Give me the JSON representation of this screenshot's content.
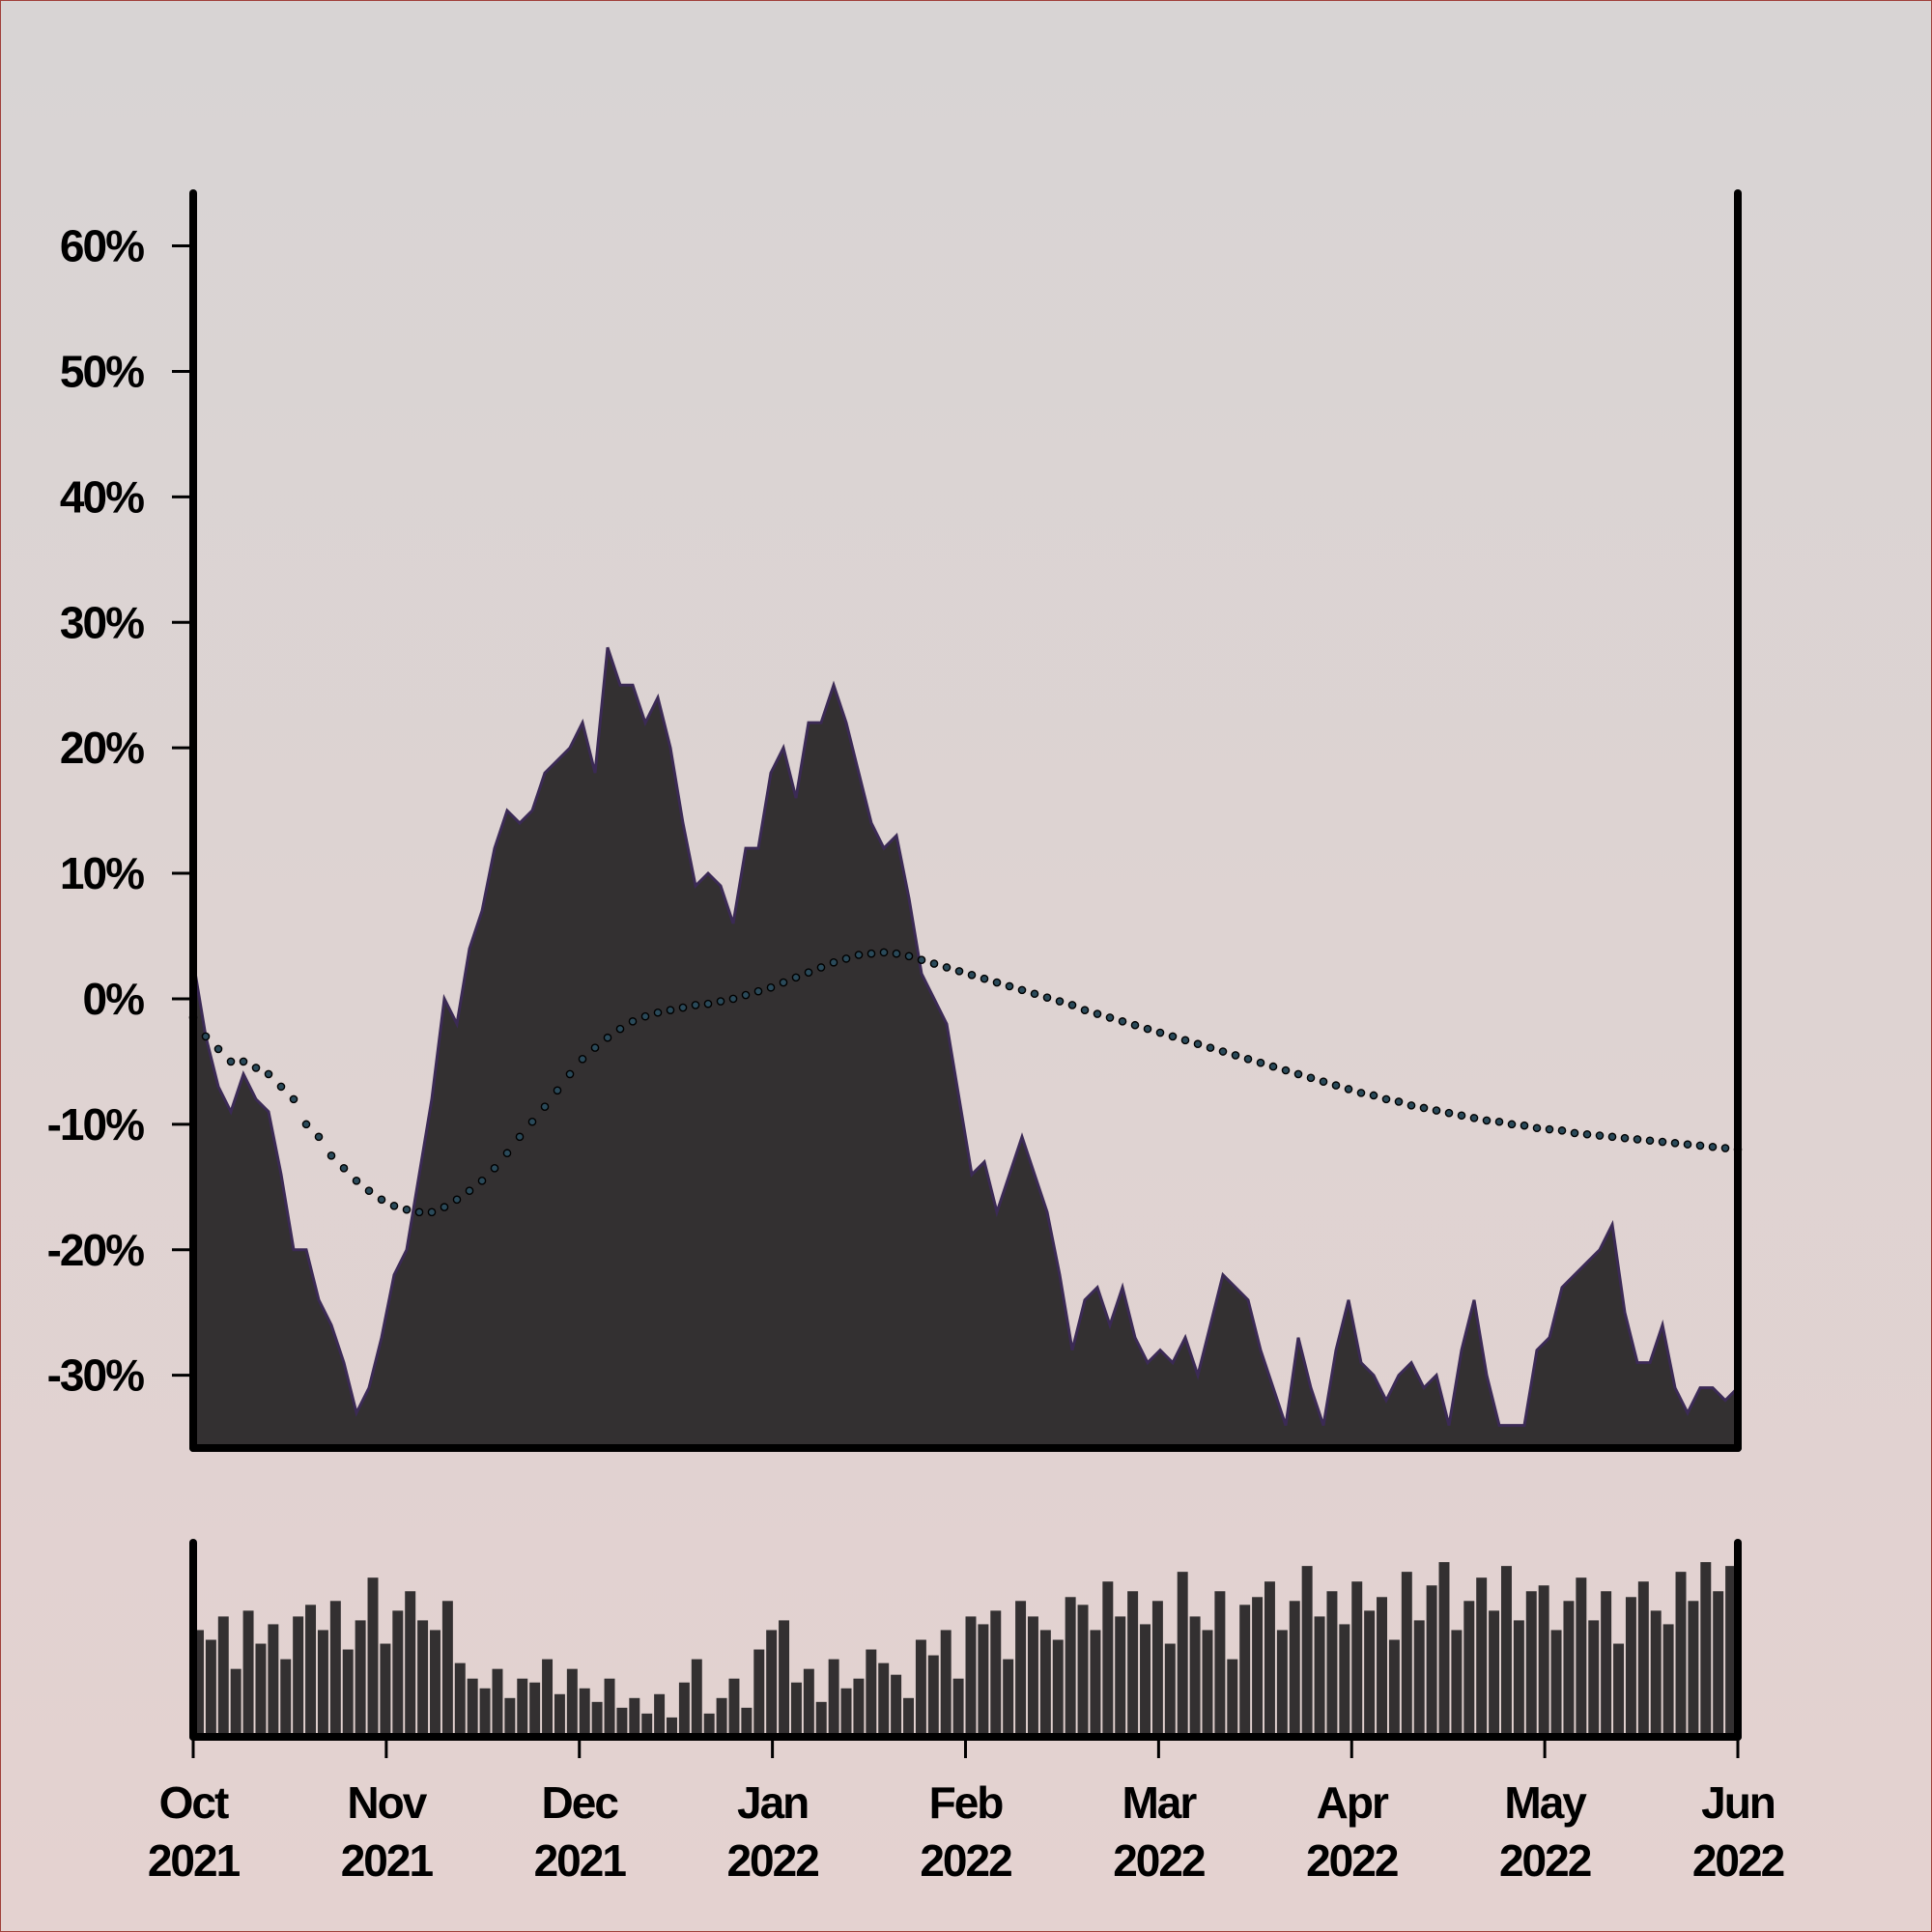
{
  "chart_data": [
    {
      "type": "area",
      "ylim": [
        -35.8,
        64.2
      ],
      "yticks": [
        {
          "value": -30,
          "label": "-30%"
        },
        {
          "value": -20,
          "label": "-20%"
        },
        {
          "value": -10,
          "label": "-10%"
        },
        {
          "value": 0,
          "label": "0%"
        },
        {
          "value": 10,
          "label": "10%"
        },
        {
          "value": 20,
          "label": "20%"
        },
        {
          "value": 30,
          "label": "30%"
        },
        {
          "value": 40,
          "label": "40%"
        },
        {
          "value": 50,
          "label": "50%"
        },
        {
          "value": 60,
          "label": "60%"
        }
      ],
      "series": [
        {
          "kind": "area",
          "color": "#333031",
          "edge": "#3b2a55",
          "values": [
            3,
            -3,
            -7,
            -9,
            -6,
            -8,
            -9,
            -14,
            -20,
            -20,
            -24,
            -26,
            -29,
            -33,
            -31,
            -27,
            -22,
            -20,
            -14,
            -8,
            0,
            -2,
            4,
            7,
            12,
            15,
            14,
            15,
            18,
            19,
            20,
            22,
            18,
            28,
            25,
            25,
            22,
            24,
            20,
            14,
            9,
            10,
            9,
            6,
            12,
            12,
            18,
            20,
            16,
            22,
            22,
            25,
            22,
            18,
            14,
            12,
            13,
            8,
            2,
            0,
            -2,
            -8,
            -14,
            -13,
            -17,
            -14,
            -11,
            -14,
            -17,
            -22,
            -28,
            -24,
            -23,
            -26,
            -23,
            -27,
            -29,
            -28,
            -29,
            -27,
            -30,
            -26,
            -22,
            -23,
            -24,
            -28,
            -31,
            -34,
            -27,
            -31,
            -34,
            -28,
            -24,
            -29,
            -30,
            -32,
            -30,
            -29,
            -31,
            -30,
            -34,
            -28,
            -24,
            -30,
            -34,
            -34,
            -34,
            -28,
            -27,
            -23,
            -22,
            -21,
            -20,
            -18,
            -25,
            -29,
            -29,
            -26,
            -31,
            -33,
            -31,
            -31,
            -32,
            -31
          ]
        },
        {
          "kind": "dots",
          "color": "#2a4a5a",
          "values": [
            -1.5,
            -3,
            -4,
            -5,
            -5,
            -5.5,
            -6,
            -7,
            -8,
            -10,
            -11,
            -12.5,
            -13.5,
            -14.5,
            -15.3,
            -16,
            -16.5,
            -16.8,
            -17,
            -17,
            -16.6,
            -16,
            -15.3,
            -14.5,
            -13.5,
            -12.3,
            -11,
            -9.8,
            -8.6,
            -7.3,
            -6,
            -4.8,
            -3.9,
            -3.1,
            -2.4,
            -1.8,
            -1.4,
            -1.1,
            -0.9,
            -0.7,
            -0.5,
            -0.4,
            -0.2,
            0,
            0.3,
            0.6,
            0.9,
            1.3,
            1.7,
            2.1,
            2.5,
            2.9,
            3.2,
            3.5,
            3.6,
            3.7,
            3.6,
            3.4,
            3.1,
            2.8,
            2.5,
            2.2,
            1.9,
            1.6,
            1.3,
            1,
            0.7,
            0.4,
            0.1,
            -0.2,
            -0.5,
            -0.9,
            -1.2,
            -1.5,
            -1.8,
            -2.1,
            -2.4,
            -2.7,
            -3,
            -3.3,
            -3.6,
            -3.9,
            -4.2,
            -4.5,
            -4.8,
            -5.1,
            -5.4,
            -5.7,
            -6,
            -6.3,
            -6.6,
            -6.9,
            -7.2,
            -7.5,
            -7.7,
            -8,
            -8.2,
            -8.5,
            -8.7,
            -8.9,
            -9.1,
            -9.3,
            -9.5,
            -9.7,
            -9.8,
            -10,
            -10.1,
            -10.3,
            -10.4,
            -10.5,
            -10.7,
            -10.8,
            -10.9,
            -11,
            -11.1,
            -11.2,
            -11.3,
            -11.4,
            -11.5,
            -11.6,
            -11.7,
            -11.8,
            -11.9,
            -12
          ]
        }
      ]
    },
    {
      "type": "bar",
      "color": "#333031",
      "ylim": [
        0,
        100
      ],
      "xlim": [
        "2021-10",
        "2022-06"
      ],
      "xticks": [
        {
          "value": "2021-10",
          "label": [
            "Oct",
            "2021"
          ]
        },
        {
          "value": "2021-11",
          "label": [
            "Nov",
            "2021"
          ]
        },
        {
          "value": "2021-12",
          "label": [
            "Dec",
            "2021"
          ]
        },
        {
          "value": "2022-01",
          "label": [
            "Jan",
            "2022"
          ]
        },
        {
          "value": "2022-02",
          "label": [
            "Feb",
            "2022"
          ]
        },
        {
          "value": "2022-03",
          "label": [
            "Mar",
            "2022"
          ]
        },
        {
          "value": "2022-04",
          "label": [
            "Apr",
            "2022"
          ]
        },
        {
          "value": "2022-05",
          "label": [
            "May",
            "2022"
          ]
        },
        {
          "value": "2022-06",
          "label": [
            "Jun",
            "2022"
          ]
        }
      ],
      "values": [
        55,
        50,
        62,
        35,
        65,
        48,
        58,
        40,
        62,
        68,
        55,
        70,
        45,
        60,
        82,
        48,
        65,
        75,
        60,
        55,
        70,
        38,
        30,
        25,
        35,
        20,
        30,
        28,
        40,
        22,
        35,
        25,
        18,
        30,
        15,
        20,
        12,
        22,
        10,
        28,
        40,
        12,
        20,
        30,
        15,
        45,
        55,
        60,
        28,
        35,
        18,
        40,
        25,
        30,
        45,
        38,
        32,
        20,
        50,
        42,
        55,
        30,
        62,
        58,
        65,
        40,
        70,
        62,
        55,
        50,
        72,
        68,
        55,
        80,
        62,
        75,
        58,
        70,
        48,
        85,
        62,
        55,
        75,
        40,
        68,
        72,
        80,
        55,
        70,
        88,
        62,
        75,
        58,
        80,
        65,
        72,
        50,
        85,
        60,
        78,
        90,
        55,
        70,
        82,
        65,
        88,
        60,
        75,
        78,
        55,
        70,
        82,
        60,
        75,
        48,
        72,
        80,
        65,
        58,
        85,
        70,
        90,
        75,
        88
      ]
    }
  ]
}
